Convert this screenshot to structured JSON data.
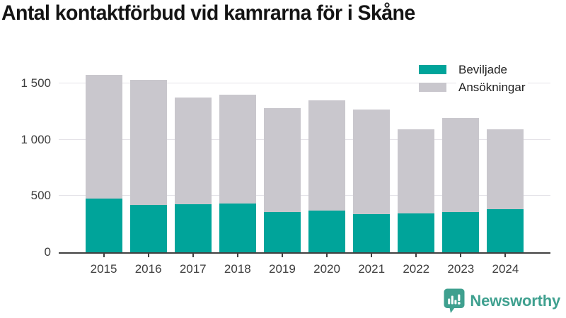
{
  "title": "Antal kontaktförbud vid kamrarna för i Skåne",
  "chart_data": {
    "type": "bar",
    "variant": "overlay-stacked",
    "title": "Antal kontaktförbud vid kamrarna för i Skåne",
    "categories": [
      "2015",
      "2016",
      "2017",
      "2018",
      "2019",
      "2020",
      "2021",
      "2022",
      "2023",
      "2024"
    ],
    "series": [
      {
        "name": "Ansökningar",
        "color": "#c9c7cd",
        "values": [
          1575,
          1530,
          1375,
          1400,
          1280,
          1350,
          1270,
          1090,
          1190,
          1090
        ]
      },
      {
        "name": "Beviljade",
        "color": "#00a49a",
        "values": [
          475,
          420,
          425,
          430,
          360,
          370,
          340,
          345,
          355,
          380
        ]
      }
    ],
    "xlabel": "",
    "ylabel": "",
    "ylim": [
      0,
      1675
    ],
    "yticks": [
      0,
      500,
      1000,
      1500
    ],
    "ytick_labels": [
      "0",
      "500",
      "1 000",
      "1 500"
    ],
    "grid": true,
    "legend_position": "top-right"
  },
  "legend": {
    "items": [
      {
        "label": "Beviljade",
        "color": "#00a49a"
      },
      {
        "label": "Ansökningar",
        "color": "#c9c7cd"
      }
    ]
  },
  "branding": {
    "logo_text": "Newsworthy",
    "logo_color": "#3fa08f",
    "logo_icon": "newsworthy-speech-bubble-chart-icon"
  },
  "colors": {
    "bar_granted": "#00a49a",
    "bar_applications": "#c9c7cd",
    "axis": "#404040",
    "gridline": "#e4e2e8",
    "tick_text": "#3d3d3d",
    "title_text": "#141414"
  }
}
